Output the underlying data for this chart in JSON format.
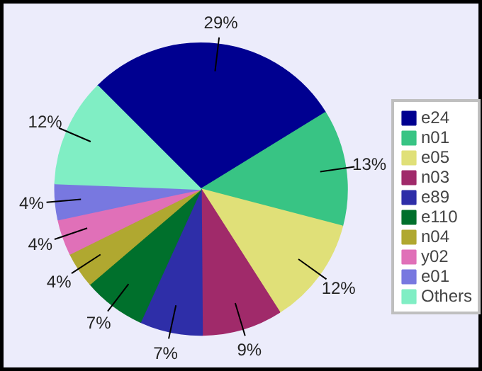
{
  "chart_data": {
    "type": "pie",
    "categories": [
      "e24",
      "n01",
      "e05",
      "n03",
      "e89",
      "e110",
      "n04",
      "y02",
      "e01",
      "Others"
    ],
    "values": [
      29,
      13,
      12,
      9,
      7,
      7,
      4,
      4,
      4,
      12
    ],
    "value_labels": [
      "29%",
      "13%",
      "12%",
      "9%",
      "7%",
      "7%",
      "4%",
      "4%",
      "4%",
      "12%"
    ],
    "colors": [
      "#000090",
      "#38c484",
      "#e0e078",
      "#a02a6a",
      "#2e2ea8",
      "#00702c",
      "#b0a830",
      "#e070b8",
      "#7878e0",
      "#80eec4"
    ],
    "legend": "right"
  }
}
